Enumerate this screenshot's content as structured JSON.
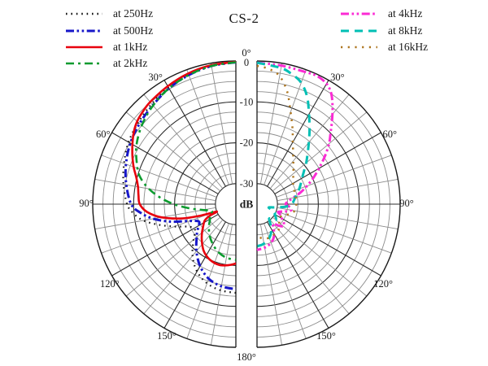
{
  "title": "CS-2",
  "axes": {
    "db_unit_label": "dB",
    "angle_zero_label": "0°",
    "bottom_angle_label": "180°",
    "db_tick_labels": [
      {
        "value": 0,
        "label": "0"
      },
      {
        "value": -10,
        "label": "-10"
      },
      {
        "value": -20,
        "label": "-20"
      },
      {
        "value": -30,
        "label": "-30"
      }
    ],
    "left_angle_labels": [
      {
        "angle": 30,
        "label": "30°"
      },
      {
        "angle": 60,
        "label": "60°"
      },
      {
        "angle": 90,
        "label": "90°"
      },
      {
        "angle": 120,
        "label": "120°"
      },
      {
        "angle": 150,
        "label": "150°"
      }
    ],
    "right_angle_labels": [
      {
        "angle": 30,
        "label": "30°"
      },
      {
        "angle": 60,
        "label": "60°"
      },
      {
        "angle": 90,
        "label": "90°"
      },
      {
        "angle": 120,
        "label": "120°"
      },
      {
        "angle": 150,
        "label": "150°"
      }
    ],
    "grid": {
      "minor_step_db": 2.5,
      "major_step_db": 10,
      "minor_step_deg": 10,
      "major_step_deg": 30,
      "grid_on": true
    }
  },
  "chart_data": [
    {
      "type": "line",
      "subtype": "polar_half",
      "side": "left",
      "angle_range_deg": [
        0,
        180
      ],
      "db_axis": {
        "max": 0,
        "min_labeled": -30,
        "center_value": -35,
        "unit": "dB"
      },
      "series": [
        {
          "name": "250Hz",
          "label": "at 250Hz",
          "color": "#141414",
          "style": "dotted-fine",
          "points": [
            [
              0,
              -0.3
            ],
            [
              10,
              -0.6
            ],
            [
              20,
              -1.2
            ],
            [
              30,
              -2.0
            ],
            [
              40,
              -3.0
            ],
            [
              50,
              -3.9
            ],
            [
              60,
              -4.7
            ],
            [
              70,
              -5.9
            ],
            [
              80,
              -7.1
            ],
            [
              90,
              -8.4
            ],
            [
              95,
              -9.8
            ],
            [
              100,
              -12
            ],
            [
              105,
              -15.5
            ],
            [
              110,
              -19
            ],
            [
              115,
              -22
            ],
            [
              120,
              -23.2
            ],
            [
              125,
              -22.8
            ],
            [
              130,
              -21.5
            ],
            [
              140,
              -18.5
            ],
            [
              150,
              -16
            ],
            [
              160,
              -14.4
            ],
            [
              170,
              -13.6
            ],
            [
              180,
              -13.3
            ]
          ]
        },
        {
          "name": "500Hz",
          "label": "at 500Hz",
          "color": "#1717c9",
          "style": "dash-dot-dot",
          "points": [
            [
              0,
              -0.3
            ],
            [
              10,
              -0.7
            ],
            [
              20,
              -1.4
            ],
            [
              30,
              -2.3
            ],
            [
              40,
              -3.4
            ],
            [
              50,
              -4.3
            ],
            [
              60,
              -5.2
            ],
            [
              70,
              -6.4
            ],
            [
              80,
              -7.8
            ],
            [
              90,
              -9.4
            ],
            [
              95,
              -11.5
            ],
            [
              100,
              -14.5
            ],
            [
              105,
              -18.5
            ],
            [
              110,
              -23
            ],
            [
              115,
              -25
            ],
            [
              120,
              -24.5
            ],
            [
              125,
              -23.5
            ],
            [
              130,
              -22.5
            ],
            [
              140,
              -20
            ],
            [
              150,
              -17.5
            ],
            [
              160,
              -15.6
            ],
            [
              170,
              -14.6
            ],
            [
              180,
              -14.2
            ]
          ]
        },
        {
          "name": "1kHz",
          "label": "at 1kHz",
          "color": "#e8000d",
          "style": "solid",
          "points": [
            [
              0,
              -0.2
            ],
            [
              10,
              -0.5
            ],
            [
              20,
              -1.0
            ],
            [
              30,
              -1.7
            ],
            [
              40,
              -2.4
            ],
            [
              45,
              -2.9
            ],
            [
              50,
              -3.5
            ],
            [
              55,
              -4.5
            ],
            [
              60,
              -5.8
            ],
            [
              65,
              -7.1
            ],
            [
              70,
              -8.4
            ],
            [
              75,
              -9.8
            ],
            [
              80,
              -10.7
            ],
            [
              85,
              -11.1
            ],
            [
              90,
              -11.5
            ],
            [
              95,
              -13.2
            ],
            [
              100,
              -16.5
            ],
            [
              105,
              -21.5
            ],
            [
              108,
              -26
            ],
            [
              111,
              -30
            ],
            [
              114,
              -28
            ],
            [
              117,
              -26.6
            ],
            [
              120,
              -26
            ],
            [
              125,
              -25.2
            ],
            [
              130,
              -24.2
            ],
            [
              135,
              -23.2
            ],
            [
              140,
              -22.2
            ],
            [
              145,
              -21.2
            ],
            [
              150,
              -20.5
            ],
            [
              155,
              -20
            ],
            [
              160,
              -19.7
            ],
            [
              165,
              -19.6
            ],
            [
              170,
              -19.8
            ],
            [
              175,
              -20.1
            ],
            [
              180,
              -20.5
            ]
          ]
        },
        {
          "name": "2kHz",
          "label": "at 2kHz",
          "color": "#0c9b2f",
          "style": "dash-dot",
          "points": [
            [
              0,
              -0.3
            ],
            [
              10,
              -0.7
            ],
            [
              20,
              -1.4
            ],
            [
              30,
              -2.3
            ],
            [
              40,
              -3.5
            ],
            [
              50,
              -5.0
            ],
            [
              60,
              -6.9
            ],
            [
              70,
              -9.4
            ],
            [
              75,
              -11
            ],
            [
              80,
              -13.4
            ],
            [
              85,
              -16.4
            ],
            [
              90,
              -19.8
            ],
            [
              95,
              -23.5
            ],
            [
              100,
              -26.8
            ],
            [
              105,
              -28.8
            ],
            [
              110,
              -28.6
            ],
            [
              115,
              -28
            ],
            [
              120,
              -27.7
            ],
            [
              130,
              -26.4
            ],
            [
              140,
              -25
            ],
            [
              150,
              -23.7
            ],
            [
              160,
              -22.5
            ],
            [
              170,
              -21.7
            ],
            [
              180,
              -21.4
            ]
          ]
        }
      ]
    },
    {
      "type": "line",
      "subtype": "polar_half",
      "side": "right",
      "angle_range_deg": [
        0,
        180
      ],
      "db_axis": {
        "max": 0,
        "min_labeled": -30,
        "center_value": -35,
        "unit": "dB"
      },
      "series": [
        {
          "name": "4kHz",
          "label": "at 4kHz",
          "color": "#fb2bd4",
          "style": "dash-dot-dot",
          "points": [
            [
              0,
              -0.4
            ],
            [
              10,
              -0.6
            ],
            [
              20,
              -0.6
            ],
            [
              25,
              -0.4
            ],
            [
              30,
              -1.0
            ],
            [
              34,
              -2.5
            ],
            [
              38,
              -5
            ],
            [
              42,
              -7.6
            ],
            [
              46,
              -10
            ],
            [
              50,
              -12
            ],
            [
              55,
              -14.8
            ],
            [
              60,
              -17.5
            ],
            [
              65,
              -19.8
            ],
            [
              70,
              -22
            ],
            [
              75,
              -24
            ],
            [
              80,
              -26
            ],
            [
              85,
              -27.4
            ],
            [
              90,
              -28
            ],
            [
              95,
              -27
            ],
            [
              100,
              -26.5
            ],
            [
              105,
              -28
            ],
            [
              110,
              -29.5
            ],
            [
              115,
              -28.6
            ],
            [
              120,
              -28
            ],
            [
              125,
              -27
            ],
            [
              130,
              -26.6
            ],
            [
              135,
              -27.6
            ],
            [
              140,
              -28.8
            ],
            [
              145,
              -28
            ],
            [
              150,
              -26.6
            ],
            [
              155,
              -25.6
            ],
            [
              160,
              -25
            ],
            [
              165,
              -24.5
            ],
            [
              170,
              -24.2
            ],
            [
              175,
              -24
            ],
            [
              180,
              -23.8
            ]
          ]
        },
        {
          "name": "8kHz",
          "label": "at 8kHz",
          "color": "#00bfb4",
          "style": "dashed",
          "points": [
            [
              0,
              -0.4
            ],
            [
              10,
              -1.2
            ],
            [
              15,
              -2.1
            ],
            [
              20,
              -3.4
            ],
            [
              25,
              -6
            ],
            [
              30,
              -9.6
            ],
            [
              35,
              -12.6
            ],
            [
              40,
              -15.3
            ],
            [
              45,
              -17.5
            ],
            [
              50,
              -19.3
            ],
            [
              55,
              -21
            ],
            [
              60,
              -22.3
            ],
            [
              65,
              -23.2
            ],
            [
              70,
              -24
            ],
            [
              75,
              -24.8
            ],
            [
              80,
              -25.5
            ],
            [
              85,
              -26
            ],
            [
              90,
              -26.5
            ],
            [
              95,
              -28
            ],
            [
              100,
              -30.5
            ],
            [
              105,
              -32
            ],
            [
              110,
              -31.5
            ],
            [
              115,
              -30.2
            ],
            [
              120,
              -30
            ],
            [
              125,
              -29.4
            ],
            [
              130,
              -29
            ],
            [
              135,
              -29.8
            ],
            [
              140,
              -30.4
            ],
            [
              145,
              -29.4
            ],
            [
              150,
              -28
            ],
            [
              155,
              -27
            ],
            [
              160,
              -26.2
            ],
            [
              165,
              -25.6
            ],
            [
              170,
              -25.2
            ],
            [
              175,
              -24.9
            ],
            [
              180,
              -24.7
            ]
          ]
        },
        {
          "name": "16kHz",
          "label": "at 16kHz",
          "color": "#ad751f",
          "style": "dotted",
          "points": [
            [
              0,
              -1.2
            ],
            [
              5,
              -1.8
            ],
            [
              10,
              -3.2
            ],
            [
              15,
              -6.5
            ],
            [
              20,
              -11
            ],
            [
              25,
              -14.5
            ],
            [
              30,
              -17.5
            ],
            [
              35,
              -19.6
            ],
            [
              40,
              -21.2
            ],
            [
              45,
              -22.4
            ],
            [
              50,
              -23.4
            ],
            [
              55,
              -24.2
            ],
            [
              60,
              -24.8
            ],
            [
              70,
              -25.3
            ],
            [
              80,
              -25.4
            ],
            [
              90,
              -25.4
            ],
            [
              100,
              -25.7
            ],
            [
              105,
              -26.3
            ],
            [
              110,
              -27.3
            ],
            [
              115,
              -28.2
            ],
            [
              120,
              -28.6
            ],
            [
              125,
              -28.4
            ],
            [
              130,
              -27.9
            ],
            [
              135,
              -27.3
            ],
            [
              140,
              -26.8
            ],
            [
              150,
              -26.5
            ],
            [
              160,
              -26.2
            ],
            [
              170,
              -26.6
            ],
            [
              180,
              -26.8
            ]
          ]
        }
      ]
    }
  ],
  "colors": {
    "grid_minor": "#8c8c8c",
    "grid_major": "#2b2b2b",
    "boundary": "#1a1a1a",
    "text": "#1a1a1a"
  }
}
